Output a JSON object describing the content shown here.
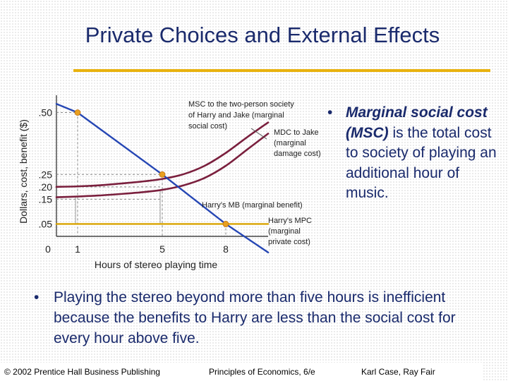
{
  "title": "Private Choices and External Effects",
  "bullet_symbol": "•",
  "bullet1": {
    "lead": "Marginal social cost (MSC)",
    "rest": " is the total cost to society of playing an additional hour of music."
  },
  "bullet2": "Playing the stereo beyond more than five hours is inefficient because the benefits to Harry are less than the social cost for every hour above five.",
  "footer": {
    "left": "© 2002 Prentice Hall Business Publishing",
    "center": "Principles of Economics, 6/e",
    "right": "Karl Case, Ray Fair"
  },
  "colors": {
    "title": "#1a2a6c",
    "rule": "#e9b20e",
    "msc": "#7a1f3d",
    "mdc": "#7a1f3d",
    "mb": "#2546b4",
    "mpc": "#d9a400",
    "marker": "#e8a020"
  },
  "chart_data": {
    "type": "line",
    "xlabel": "Hours of stereo playing time",
    "ylabel": "Dollars, cost, benefit ($)",
    "origin_label": "0",
    "xlim": [
      0,
      10
    ],
    "ylim": [
      0,
      0.57
    ],
    "xticks": [
      {
        "value": 1,
        "label": "1"
      },
      {
        "value": 5,
        "label": "5"
      },
      {
        "value": 8,
        "label": "8"
      }
    ],
    "yticks": [
      {
        "value": 0.5,
        "label": ".50"
      },
      {
        "value": 0.25,
        "label": ".25"
      },
      {
        "value": 0.2,
        "label": ".20"
      },
      {
        "value": 0.15,
        "label": ".15"
      },
      {
        "value": 0.05,
        "label": ".05"
      }
    ],
    "series": [
      {
        "key": "msc",
        "name": "MSC to the two-person society of Harry and Jake (marginal social cost)",
        "x": [
          0,
          1,
          2,
          3,
          4,
          5,
          6,
          7,
          8,
          9,
          10
        ],
        "y": [
          0.2,
          0.202,
          0.206,
          0.213,
          0.221,
          0.232,
          0.251,
          0.285,
          0.337,
          0.4,
          0.46
        ]
      },
      {
        "key": "mdc",
        "name": "MDC to Jake (marginal damage cost)",
        "x": [
          0,
          1,
          2,
          3,
          4,
          5,
          6,
          7,
          8,
          9,
          10
        ],
        "y": [
          0.158,
          0.161,
          0.165,
          0.171,
          0.178,
          0.188,
          0.206,
          0.236,
          0.285,
          0.35,
          0.415
        ]
      },
      {
        "key": "mb",
        "name": "Harry's MB (marginal benefit)",
        "x": [
          0,
          1,
          5,
          8,
          10
        ],
        "y": [
          0.535,
          0.5,
          0.25,
          0.05,
          -0.065
        ]
      },
      {
        "key": "mpc",
        "name": "Harry's MPC (marginal private cost)",
        "x": [
          0,
          10
        ],
        "y": [
          0.05,
          0.05
        ]
      }
    ],
    "points": [
      {
        "x": 1,
        "y": 0.5
      },
      {
        "x": 5,
        "y": 0.25
      },
      {
        "x": 8,
        "y": 0.05
      }
    ],
    "annotations": {
      "msc_label": [
        "MSC to the two-person society",
        "of Harry and Jake (marginal",
        "social cost)"
      ],
      "mdc_label": [
        "MDC to Jake",
        "(marginal",
        "damage cost)"
      ],
      "mb_label": "Harry's MB (marginal benefit)",
      "mpc_label": [
        "Harry's MPC",
        "(marginal",
        "private cost)"
      ]
    }
  }
}
